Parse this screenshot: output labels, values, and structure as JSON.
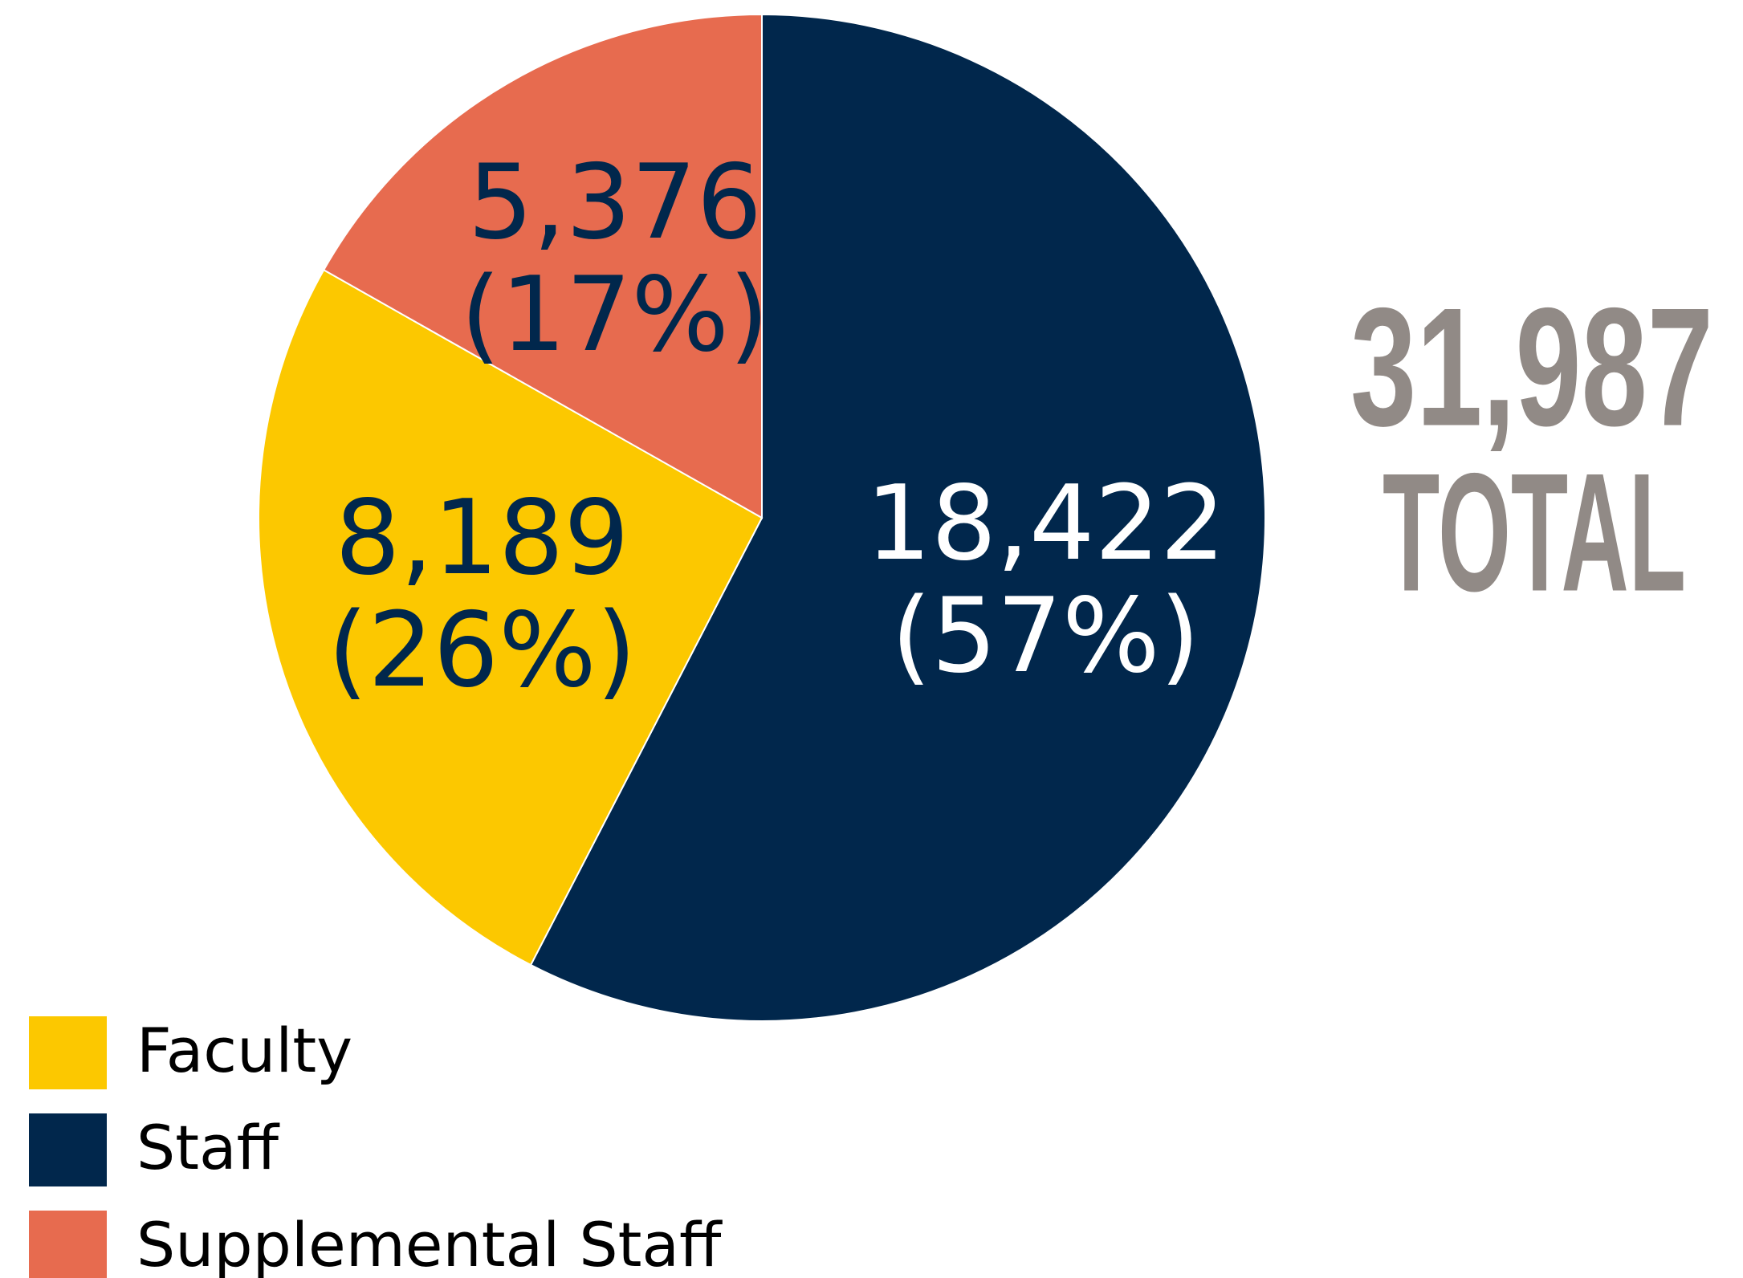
{
  "chart_data": {
    "type": "pie",
    "categories": [
      "Faculty",
      "Staff",
      "Supplemental Staff"
    ],
    "values": [
      8189,
      18422,
      5376
    ],
    "value_labels": [
      "8,189",
      "18,422",
      "5,376"
    ],
    "percent_labels": [
      "(26%)",
      "(57%)",
      "(17%)"
    ],
    "colors": [
      "#fcc800",
      "#01274c",
      "#e76b4f"
    ],
    "label_colors": [
      "#01274c",
      "#ffffff",
      "#01274c"
    ],
    "total": {
      "value": 31987,
      "label": "31,987"
    },
    "total_caption": "TOTAL",
    "legend": "bottom-left"
  }
}
